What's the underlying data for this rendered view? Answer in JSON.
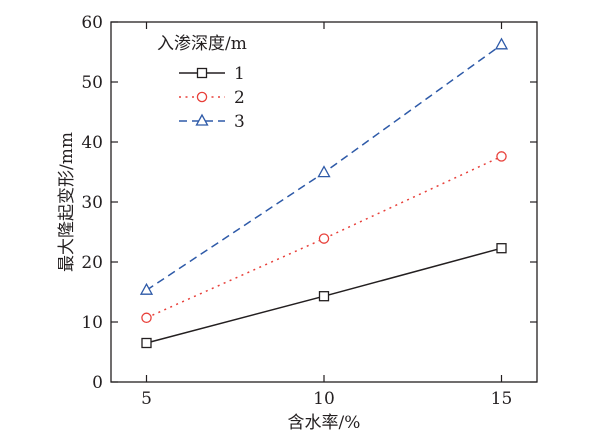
{
  "chart_data": {
    "type": "line",
    "xlabel": "含水率/%",
    "ylabel": "最大隆起变形/mm",
    "x": [
      5,
      10,
      15
    ],
    "xlim": [
      4,
      16
    ],
    "ylim": [
      0,
      60
    ],
    "xticks": [
      5,
      10,
      15
    ],
    "yticks": [
      0,
      10,
      20,
      30,
      40,
      50,
      60
    ],
    "grid": false,
    "legend": {
      "title": "入渗深度/m",
      "placement": "top-left"
    },
    "series": [
      {
        "name": "1",
        "values": [
          6.5,
          14.3,
          22.3
        ],
        "color": "#231f20",
        "marker": "square",
        "line": "solid"
      },
      {
        "name": "2",
        "values": [
          10.7,
          23.9,
          37.6
        ],
        "color": "#e8403a",
        "marker": "circle",
        "line": "dotted"
      },
      {
        "name": "3",
        "values": [
          15.3,
          34.9,
          56.2
        ],
        "color": "#2e5aa8",
        "marker": "triangle",
        "line": "dashed"
      }
    ]
  }
}
